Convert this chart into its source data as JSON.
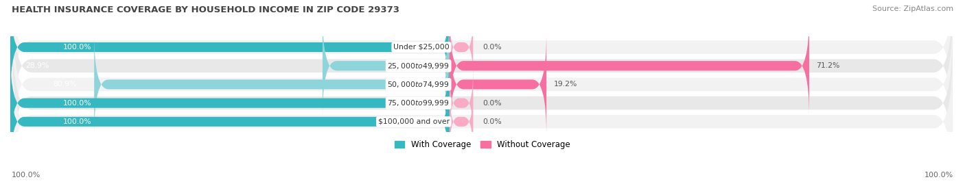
{
  "title": "HEALTH INSURANCE COVERAGE BY HOUSEHOLD INCOME IN ZIP CODE 29373",
  "source": "Source: ZipAtlas.com",
  "categories": [
    "Under $25,000",
    "$25,000 to $49,999",
    "$50,000 to $74,999",
    "$75,000 to $99,999",
    "$100,000 and over"
  ],
  "with_coverage": [
    100.0,
    28.9,
    80.9,
    100.0,
    100.0
  ],
  "without_coverage": [
    0.0,
    71.2,
    19.2,
    0.0,
    0.0
  ],
  "color_with": "#35b8c0",
  "color_with_light": "#8dd5da",
  "color_without": "#f76fa0",
  "color_without_light": "#f9aac4",
  "row_bg_odd": "#f2f2f2",
  "row_bg_even": "#e8e8e8",
  "label_pivot": 46.5,
  "axis_label_left": "100.0%",
  "axis_label_right": "100.0%",
  "legend_with": "With Coverage",
  "legend_without": "Without Coverage",
  "figsize": [
    14.06,
    2.69
  ],
  "dpi": 100
}
